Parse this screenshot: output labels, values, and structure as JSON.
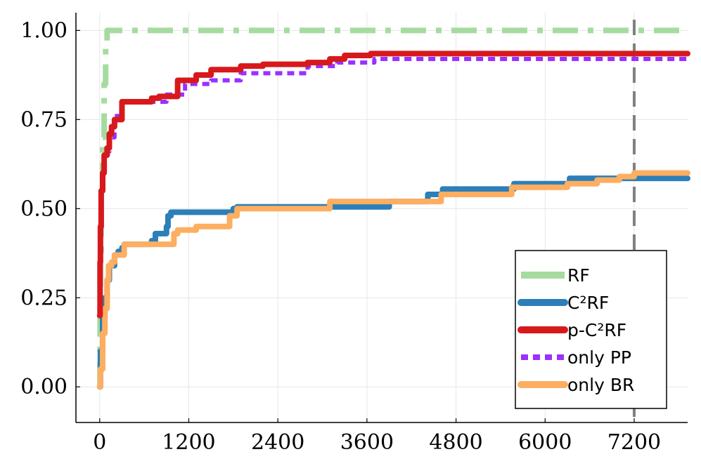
{
  "chart_data": {
    "type": "line",
    "title": "",
    "xlabel": "",
    "ylabel": "",
    "xlim": [
      -320,
      7920
    ],
    "ylim": [
      -0.1,
      1.05
    ],
    "x_ticks": [
      0,
      1200,
      2400,
      3600,
      4800,
      6000,
      7200
    ],
    "x_tick_labels": [
      "0",
      "1200",
      "2400",
      "3600",
      "4800",
      "6000",
      "7200"
    ],
    "y_ticks": [
      0.0,
      0.25,
      0.5,
      0.75,
      1.0
    ],
    "y_tick_labels": [
      "0.00",
      "0.25",
      "0.50",
      "0.75",
      "1.00"
    ],
    "grid": true,
    "legend_position": "bottom-right",
    "reference_line": {
      "x": 7200,
      "style": "dashed",
      "color": "#808080"
    },
    "series": [
      {
        "name": "RF",
        "color": "#a6dba0",
        "style": "dashdot",
        "points": [
          [
            0,
            0.0
          ],
          [
            5,
            0.2
          ],
          [
            10,
            0.38
          ],
          [
            20,
            0.55
          ],
          [
            40,
            0.7
          ],
          [
            60,
            0.85
          ],
          [
            80,
            0.97
          ],
          [
            100,
            1.0
          ],
          [
            7920,
            1.0
          ]
        ]
      },
      {
        "name": "C²RF",
        "color": "#2c7fb8",
        "style": "solid",
        "points": [
          [
            0,
            0.0
          ],
          [
            10,
            0.1
          ],
          [
            40,
            0.2
          ],
          [
            70,
            0.25
          ],
          [
            100,
            0.3
          ],
          [
            130,
            0.34
          ],
          [
            200,
            0.37
          ],
          [
            250,
            0.38
          ],
          [
            300,
            0.39
          ],
          [
            330,
            0.4
          ],
          [
            700,
            0.41
          ],
          [
            750,
            0.43
          ],
          [
            900,
            0.45
          ],
          [
            920,
            0.48
          ],
          [
            960,
            0.49
          ],
          [
            1800,
            0.5
          ],
          [
            1850,
            0.505
          ],
          [
            3900,
            0.52
          ],
          [
            4420,
            0.54
          ],
          [
            4620,
            0.555
          ],
          [
            5580,
            0.57
          ],
          [
            6330,
            0.585
          ],
          [
            7920,
            0.585
          ]
        ]
      },
      {
        "name": "p-C²RF",
        "color": "#d7191c",
        "style": "solid",
        "points": [
          [
            0,
            0.2
          ],
          [
            5,
            0.35
          ],
          [
            10,
            0.45
          ],
          [
            20,
            0.55
          ],
          [
            40,
            0.6
          ],
          [
            60,
            0.65
          ],
          [
            100,
            0.67
          ],
          [
            130,
            0.71
          ],
          [
            160,
            0.73
          ],
          [
            200,
            0.75
          ],
          [
            300,
            0.8
          ],
          [
            700,
            0.81
          ],
          [
            800,
            0.815
          ],
          [
            1050,
            0.86
          ],
          [
            1300,
            0.875
          ],
          [
            1500,
            0.89
          ],
          [
            1800,
            0.89
          ],
          [
            1900,
            0.9
          ],
          [
            2200,
            0.905
          ],
          [
            2600,
            0.905
          ],
          [
            2800,
            0.91
          ],
          [
            3100,
            0.92
          ],
          [
            3300,
            0.93
          ],
          [
            3650,
            0.935
          ],
          [
            7920,
            0.935
          ]
        ]
      },
      {
        "name": "only PP",
        "color": "#9b30ff",
        "style": "dashed",
        "points": [
          [
            0,
            0.2
          ],
          [
            5,
            0.35
          ],
          [
            10,
            0.45
          ],
          [
            20,
            0.55
          ],
          [
            40,
            0.6
          ],
          [
            60,
            0.64
          ],
          [
            100,
            0.66
          ],
          [
            130,
            0.7
          ],
          [
            200,
            0.76
          ],
          [
            300,
            0.8
          ],
          [
            700,
            0.8
          ],
          [
            900,
            0.82
          ],
          [
            1150,
            0.85
          ],
          [
            1500,
            0.86
          ],
          [
            1900,
            0.88
          ],
          [
            2500,
            0.88
          ],
          [
            2800,
            0.9
          ],
          [
            3200,
            0.91
          ],
          [
            3700,
            0.92
          ],
          [
            7920,
            0.92
          ]
        ]
      },
      {
        "name": "only BR",
        "color": "#fdae61",
        "style": "solid",
        "points": [
          [
            0,
            0.0
          ],
          [
            10,
            0.05
          ],
          [
            40,
            0.15
          ],
          [
            70,
            0.22
          ],
          [
            100,
            0.3
          ],
          [
            120,
            0.34
          ],
          [
            160,
            0.35
          ],
          [
            200,
            0.37
          ],
          [
            330,
            0.4
          ],
          [
            1000,
            0.43
          ],
          [
            1050,
            0.44
          ],
          [
            1200,
            0.44
          ],
          [
            1300,
            0.45
          ],
          [
            1750,
            0.48
          ],
          [
            1850,
            0.5
          ],
          [
            2300,
            0.5
          ],
          [
            3100,
            0.52
          ],
          [
            4600,
            0.54
          ],
          [
            5550,
            0.56
          ],
          [
            6300,
            0.57
          ],
          [
            6700,
            0.58
          ],
          [
            7000,
            0.59
          ],
          [
            7200,
            0.6
          ],
          [
            7920,
            0.6
          ]
        ]
      }
    ]
  }
}
